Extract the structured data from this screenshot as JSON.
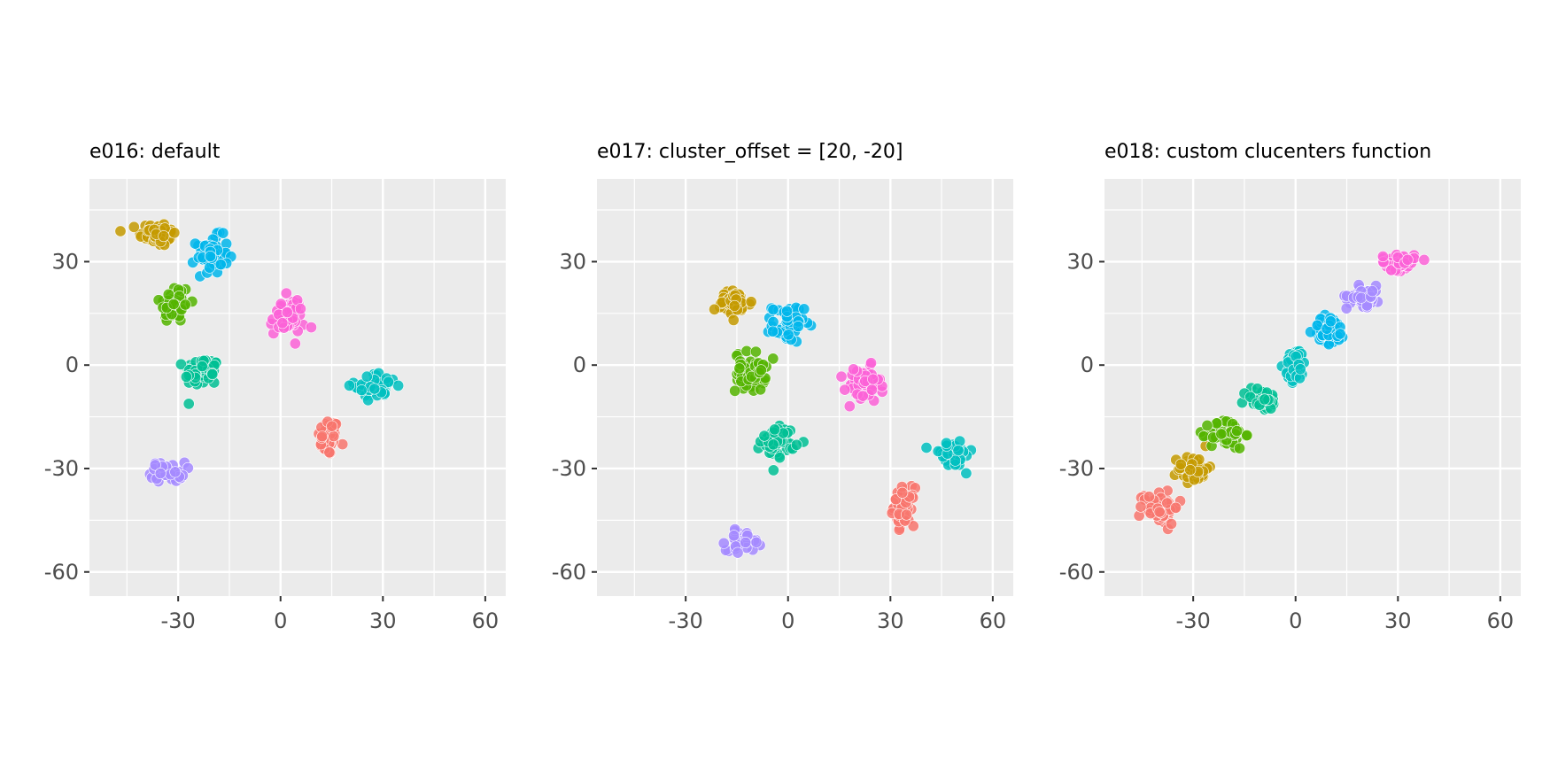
{
  "chart_data": [
    {
      "type": "scatter",
      "title": "e016: default",
      "xlabel": "",
      "ylabel": "",
      "xlim": [
        -56,
        66
      ],
      "ylim": [
        -67,
        54
      ],
      "xticks": [
        -30,
        0,
        30,
        60
      ],
      "yticks": [
        30,
        0,
        -30,
        -60
      ],
      "grid": true,
      "legend": "none",
      "series": [
        {
          "color": "#F8766D",
          "center": [
            14,
            -21
          ],
          "spread": [
            1.5,
            2.7
          ],
          "n": 50
        },
        {
          "color": "#C49A00",
          "center": [
            -36,
            38
          ],
          "spread": [
            2.7,
            1.8
          ],
          "n": 55
        },
        {
          "color": "#53B400",
          "center": [
            -31,
            18
          ],
          "spread": [
            2.2,
            2.9
          ],
          "n": 55
        },
        {
          "color": "#00C094",
          "center": [
            -23,
            -2
          ],
          "spread": [
            2.5,
            2.2
          ],
          "n": 55
        },
        {
          "color": "#00B6EB",
          "center": [
            -20,
            32
          ],
          "spread": [
            2.3,
            2.7
          ],
          "n": 55
        },
        {
          "color": "#00C0C0",
          "center": [
            28,
            -6
          ],
          "spread": [
            3.1,
            1.8
          ],
          "n": 50
        },
        {
          "color": "#A58AFF",
          "center": [
            -33,
            -31
          ],
          "spread": [
            2.5,
            1.4
          ],
          "n": 40
        },
        {
          "color": "#FB61D7",
          "center": [
            2,
            14
          ],
          "spread": [
            2.5,
            2.7
          ],
          "n": 55
        }
      ]
    },
    {
      "type": "scatter",
      "title": "e017: cluster_offset = [20, -20]",
      "xlabel": "",
      "ylabel": "",
      "xlim": [
        -56,
        66
      ],
      "ylim": [
        -67,
        54
      ],
      "xticks": [
        -30,
        0,
        30,
        60
      ],
      "yticks": [
        30,
        0,
        -30,
        -60
      ],
      "grid": true,
      "legend": "none",
      "series": [
        {
          "color": "#F8766D",
          "center": [
            34,
            -41
          ],
          "spread": [
            1.5,
            2.7
          ],
          "n": 50
        },
        {
          "color": "#C49A00",
          "center": [
            -16,
            18
          ],
          "spread": [
            2.7,
            1.8
          ],
          "n": 55
        },
        {
          "color": "#53B400",
          "center": [
            -11,
            -2
          ],
          "spread": [
            2.2,
            2.9
          ],
          "n": 55
        },
        {
          "color": "#00C094",
          "center": [
            -3,
            -22
          ],
          "spread": [
            2.5,
            2.2
          ],
          "n": 55
        },
        {
          "color": "#00B6EB",
          "center": [
            0,
            12
          ],
          "spread": [
            2.3,
            2.7
          ],
          "n": 55
        },
        {
          "color": "#00C0C0",
          "center": [
            48,
            -26
          ],
          "spread": [
            3.1,
            1.8
          ],
          "n": 50
        },
        {
          "color": "#A58AFF",
          "center": [
            -13,
            -51
          ],
          "spread": [
            2.5,
            1.4
          ],
          "n": 40
        },
        {
          "color": "#FB61D7",
          "center": [
            22,
            -6
          ],
          "spread": [
            2.5,
            2.7
          ],
          "n": 55
        }
      ]
    },
    {
      "type": "scatter",
      "title": "e018: custom clucenters function",
      "xlabel": "",
      "ylabel": "",
      "xlim": [
        -56,
        66
      ],
      "ylim": [
        -67,
        54
      ],
      "xticks": [
        -30,
        0,
        30,
        60
      ],
      "yticks": [
        30,
        0,
        -30,
        -60
      ],
      "grid": true,
      "legend": "none",
      "series": [
        {
          "color": "#F8766D",
          "center": [
            -40,
            -41
          ],
          "spread": [
            2.8,
            2.5
          ],
          "n": 60
        },
        {
          "color": "#C49A00",
          "center": [
            -30,
            -30
          ],
          "spread": [
            2.2,
            1.9
          ],
          "n": 50
        },
        {
          "color": "#53B400",
          "center": [
            -20,
            -20
          ],
          "spread": [
            2.5,
            2.2
          ],
          "n": 55
        },
        {
          "color": "#00C094",
          "center": [
            -10,
            -10
          ],
          "spread": [
            2.5,
            1.6
          ],
          "n": 50
        },
        {
          "color": "#00B6EB",
          "center": [
            10,
            10
          ],
          "spread": [
            2.3,
            2.2
          ],
          "n": 55
        },
        {
          "color": "#00C0C0",
          "center": [
            0,
            0
          ],
          "spread": [
            1.5,
            2.4
          ],
          "n": 45
        },
        {
          "color": "#A58AFF",
          "center": [
            20,
            20
          ],
          "spread": [
            2.5,
            1.5
          ],
          "n": 45
        },
        {
          "color": "#FB61D7",
          "center": [
            30,
            30
          ],
          "spread": [
            2.4,
            1.2
          ],
          "n": 55
        }
      ]
    }
  ]
}
